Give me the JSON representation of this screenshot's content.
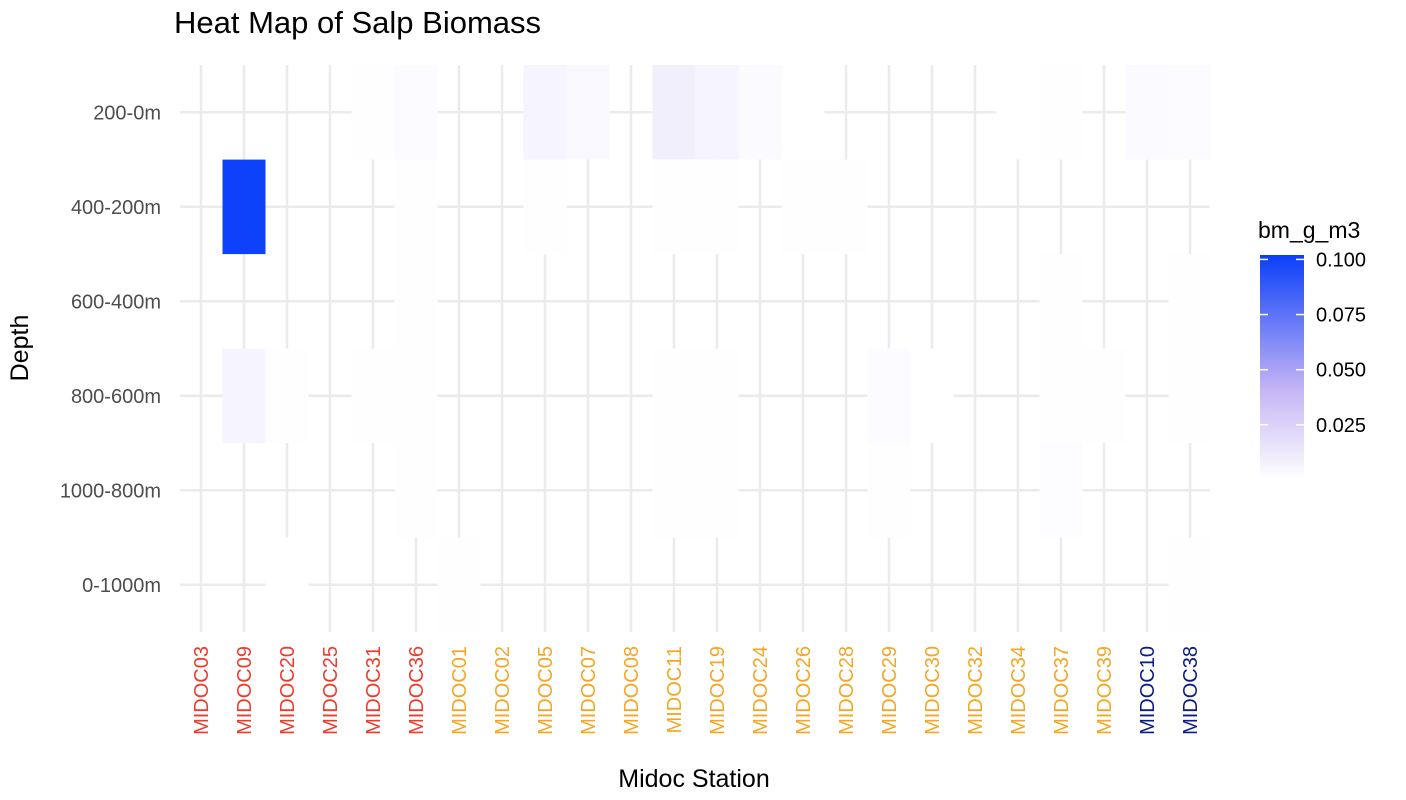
{
  "chart_data": {
    "type": "heatmap",
    "title": "Heat Map of Salp Biomass",
    "xlabel": "Midoc Station",
    "ylabel": "Depth",
    "x_categories": [
      "MIDOC03",
      "MIDOC09",
      "MIDOC20",
      "MIDOC25",
      "MIDOC31",
      "MIDOC36",
      "MIDOC01",
      "MIDOC02",
      "MIDOC05",
      "MIDOC07",
      "MIDOC08",
      "MIDOC11",
      "MIDOC19",
      "MIDOC24",
      "MIDOC26",
      "MIDOC28",
      "MIDOC29",
      "MIDOC30",
      "MIDOC32",
      "MIDOC34",
      "MIDOC37",
      "MIDOC39",
      "MIDOC10",
      "MIDOC38"
    ],
    "x_category_colors": [
      "#ee3b2b",
      "#ee3b2b",
      "#ee3b2b",
      "#ee3b2b",
      "#ee3b2b",
      "#ee3b2b",
      "#f5a623",
      "#f5a623",
      "#f5a623",
      "#f5a623",
      "#f5a623",
      "#f5a623",
      "#f5a623",
      "#f5a623",
      "#f5a623",
      "#f5a623",
      "#f5a623",
      "#f5a623",
      "#f5a623",
      "#f5a623",
      "#f5a623",
      "#f5a623",
      "#0b1a85",
      "#0b1a85"
    ],
    "y_categories": [
      "200-0m",
      "400-200m",
      "600-400m",
      "800-600m",
      "1000-800m",
      "0-1000m"
    ],
    "legend": {
      "title": "bm_g_m3",
      "ticks": [
        0.025,
        0.05,
        0.075,
        0.1
      ],
      "tick_labels": [
        "0.025",
        "0.050",
        "0.075",
        "0.100"
      ],
      "range": [
        0,
        0.102
      ],
      "low_color": "#ffffff",
      "mid_color": "#c5b5f5",
      "high_color": "#0a3ffa",
      "placement": "right"
    },
    "grid": true,
    "cells": [
      {
        "x": "MIDOC31",
        "y": "200-0m",
        "value": 0.001
      },
      {
        "x": "MIDOC36",
        "y": "200-0m",
        "value": 0.002
      },
      {
        "x": "MIDOC05",
        "y": "200-0m",
        "value": 0.006
      },
      {
        "x": "MIDOC07",
        "y": "200-0m",
        "value": 0.004
      },
      {
        "x": "MIDOC11",
        "y": "200-0m",
        "value": 0.009
      },
      {
        "x": "MIDOC19",
        "y": "200-0m",
        "value": 0.006
      },
      {
        "x": "MIDOC24",
        "y": "200-0m",
        "value": 0.003
      },
      {
        "x": "MIDOC26",
        "y": "200-0m",
        "value": 0.0002
      },
      {
        "x": "MIDOC34",
        "y": "200-0m",
        "value": 0.0001
      },
      {
        "x": "MIDOC37",
        "y": "200-0m",
        "value": 0.001
      },
      {
        "x": "MIDOC10",
        "y": "200-0m",
        "value": 0.003
      },
      {
        "x": "MIDOC38",
        "y": "200-0m",
        "value": 0.002
      },
      {
        "x": "MIDOC09",
        "y": "400-200m",
        "value": 0.101
      },
      {
        "x": "MIDOC36",
        "y": "400-200m",
        "value": 0.0003
      },
      {
        "x": "MIDOC05",
        "y": "400-200m",
        "value": 0.001
      },
      {
        "x": "MIDOC11",
        "y": "400-200m",
        "value": 0.001
      },
      {
        "x": "MIDOC19",
        "y": "400-200m",
        "value": 0.0003
      },
      {
        "x": "MIDOC26",
        "y": "400-200m",
        "value": 0.001
      },
      {
        "x": "MIDOC28",
        "y": "400-200m",
        "value": 0.0005
      },
      {
        "x": "MIDOC36",
        "y": "600-400m",
        "value": 0.0005
      },
      {
        "x": "MIDOC37",
        "y": "600-400m",
        "value": 0.0003
      },
      {
        "x": "MIDOC38",
        "y": "600-400m",
        "value": 0.0005
      },
      {
        "x": "MIDOC09",
        "y": "800-600m",
        "value": 0.006
      },
      {
        "x": "MIDOC20",
        "y": "800-600m",
        "value": 0.001
      },
      {
        "x": "MIDOC31",
        "y": "800-600m",
        "value": 0.0003
      },
      {
        "x": "MIDOC36",
        "y": "800-600m",
        "value": 0.0008
      },
      {
        "x": "MIDOC11",
        "y": "800-600m",
        "value": 0.001
      },
      {
        "x": "MIDOC19",
        "y": "800-600m",
        "value": 0.0003
      },
      {
        "x": "MIDOC29",
        "y": "800-600m",
        "value": 0.002
      },
      {
        "x": "MIDOC30",
        "y": "800-600m",
        "value": 0.0001
      },
      {
        "x": "MIDOC37",
        "y": "800-600m",
        "value": 0.001
      },
      {
        "x": "MIDOC39",
        "y": "800-600m",
        "value": 0.0003
      },
      {
        "x": "MIDOC38",
        "y": "800-600m",
        "value": 0.0003
      },
      {
        "x": "MIDOC36",
        "y": "1000-800m",
        "value": 0.001
      },
      {
        "x": "MIDOC11",
        "y": "1000-800m",
        "value": 0.0003
      },
      {
        "x": "MIDOC19",
        "y": "1000-800m",
        "value": 0.001
      },
      {
        "x": "MIDOC29",
        "y": "1000-800m",
        "value": 0.0005
      },
      {
        "x": "MIDOC37",
        "y": "1000-800m",
        "value": 0.0015
      },
      {
        "x": "MIDOC20",
        "y": "0-1000m",
        "value": 0.0002
      },
      {
        "x": "MIDOC01",
        "y": "0-1000m",
        "value": 0.0005
      },
      {
        "x": "MIDOC38",
        "y": "0-1000m",
        "value": 0.0003
      }
    ]
  }
}
